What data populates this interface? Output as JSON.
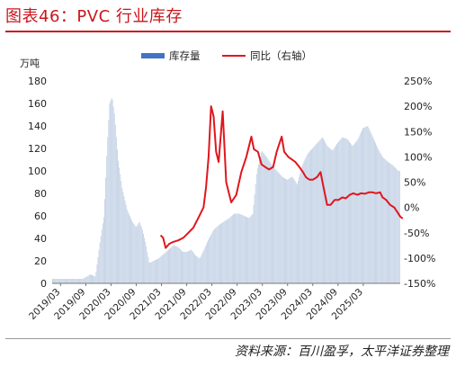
{
  "title": "图表46：PVC 行业库存",
  "source": "资料来源：百川盈孚，太平洋证券整理",
  "chart_data": {
    "type": "bar+line",
    "y_left_unit": "万吨",
    "y_left_ticks": [
      0,
      20,
      40,
      60,
      80,
      100,
      120,
      140,
      160,
      180
    ],
    "y_right_ticks": [
      "250%",
      "200%",
      "150%",
      "100%",
      "50%",
      "0%",
      "-50%",
      "-100%",
      "-150%"
    ],
    "ylim_left": [
      0,
      180
    ],
    "ylim_right_pct": [
      -150,
      250
    ],
    "x_ticks": [
      "2019/03",
      "2019/09",
      "2020/03",
      "2020/09",
      "2021/03",
      "2021/09",
      "2022/03",
      "2022/09",
      "2023/03",
      "2023/09",
      "2024/03",
      "2024/09",
      "2025/03"
    ],
    "x_range": [
      2019.0,
      2025.9
    ],
    "legend": [
      {
        "name": "库存量",
        "color": "#4472c4"
      },
      {
        "name": "同比（右轴）",
        "color": "#e0161d"
      }
    ],
    "legend_position": "top-center",
    "series": [
      {
        "name": "库存量",
        "axis": "left",
        "style": "area-bars",
        "color": "#c5d3e6",
        "points": [
          [
            2019.0,
            4
          ],
          [
            2019.3,
            4
          ],
          [
            2019.6,
            4
          ],
          [
            2019.75,
            8
          ],
          [
            2019.85,
            6
          ],
          [
            2019.95,
            40
          ],
          [
            2020.02,
            60
          ],
          [
            2020.08,
            120
          ],
          [
            2020.13,
            160
          ],
          [
            2020.18,
            166
          ],
          [
            2020.23,
            150
          ],
          [
            2020.3,
            110
          ],
          [
            2020.38,
            85
          ],
          [
            2020.48,
            65
          ],
          [
            2020.58,
            55
          ],
          [
            2020.66,
            50
          ],
          [
            2020.72,
            55
          ],
          [
            2020.78,
            48
          ],
          [
            2020.85,
            35
          ],
          [
            2020.92,
            18
          ],
          [
            2021.0,
            20
          ],
          [
            2021.1,
            22
          ],
          [
            2021.2,
            26
          ],
          [
            2021.3,
            30
          ],
          [
            2021.4,
            34
          ],
          [
            2021.5,
            32
          ],
          [
            2021.58,
            28
          ],
          [
            2021.66,
            28
          ],
          [
            2021.75,
            30
          ],
          [
            2021.83,
            25
          ],
          [
            2021.92,
            22
          ],
          [
            2022.0,
            30
          ],
          [
            2022.1,
            40
          ],
          [
            2022.2,
            48
          ],
          [
            2022.3,
            52
          ],
          [
            2022.4,
            55
          ],
          [
            2022.5,
            58
          ],
          [
            2022.6,
            62
          ],
          [
            2022.7,
            62
          ],
          [
            2022.8,
            60
          ],
          [
            2022.9,
            58
          ],
          [
            2022.97,
            62
          ],
          [
            2023.05,
            100
          ],
          [
            2023.15,
            118
          ],
          [
            2023.25,
            112
          ],
          [
            2023.35,
            105
          ],
          [
            2023.45,
            100
          ],
          [
            2023.55,
            95
          ],
          [
            2023.65,
            92
          ],
          [
            2023.75,
            95
          ],
          [
            2023.85,
            88
          ],
          [
            2023.95,
            105
          ],
          [
            2024.05,
            115
          ],
          [
            2024.15,
            120
          ],
          [
            2024.25,
            125
          ],
          [
            2024.35,
            130
          ],
          [
            2024.45,
            122
          ],
          [
            2024.55,
            118
          ],
          [
            2024.65,
            125
          ],
          [
            2024.75,
            130
          ],
          [
            2024.85,
            128
          ],
          [
            2024.95,
            122
          ],
          [
            2025.05,
            128
          ],
          [
            2025.15,
            138
          ],
          [
            2025.25,
            140
          ],
          [
            2025.35,
            130
          ],
          [
            2025.45,
            120
          ],
          [
            2025.55,
            112
          ],
          [
            2025.65,
            108
          ],
          [
            2025.75,
            105
          ],
          [
            2025.85,
            100
          ]
        ]
      },
      {
        "name": "同比（右轴）",
        "axis": "right",
        "style": "line",
        "color": "#e0161d",
        "points_pct": [
          [
            2021.15,
            -55
          ],
          [
            2021.2,
            -60
          ],
          [
            2021.25,
            -80
          ],
          [
            2021.32,
            -72
          ],
          [
            2021.4,
            -68
          ],
          [
            2021.5,
            -65
          ],
          [
            2021.6,
            -60
          ],
          [
            2021.7,
            -50
          ],
          [
            2021.8,
            -40
          ],
          [
            2021.9,
            -20
          ],
          [
            2022.0,
            0
          ],
          [
            2022.05,
            40
          ],
          [
            2022.1,
            100
          ],
          [
            2022.15,
            200
          ],
          [
            2022.2,
            180
          ],
          [
            2022.25,
            110
          ],
          [
            2022.3,
            90
          ],
          [
            2022.38,
            190
          ],
          [
            2022.45,
            50
          ],
          [
            2022.55,
            10
          ],
          [
            2022.65,
            25
          ],
          [
            2022.75,
            70
          ],
          [
            2022.85,
            100
          ],
          [
            2022.95,
            140
          ],
          [
            2023.0,
            115
          ],
          [
            2023.08,
            110
          ],
          [
            2023.15,
            85
          ],
          [
            2023.22,
            80
          ],
          [
            2023.3,
            75
          ],
          [
            2023.38,
            80
          ],
          [
            2023.45,
            110
          ],
          [
            2023.5,
            125
          ],
          [
            2023.55,
            140
          ],
          [
            2023.6,
            110
          ],
          [
            2023.68,
            100
          ],
          [
            2023.75,
            95
          ],
          [
            2023.82,
            90
          ],
          [
            2023.9,
            80
          ],
          [
            2023.97,
            70
          ],
          [
            2024.03,
            60
          ],
          [
            2024.1,
            55
          ],
          [
            2024.17,
            55
          ],
          [
            2024.25,
            60
          ],
          [
            2024.32,
            70
          ],
          [
            2024.38,
            40
          ],
          [
            2024.45,
            5
          ],
          [
            2024.52,
            5
          ],
          [
            2024.6,
            15
          ],
          [
            2024.68,
            15
          ],
          [
            2024.75,
            20
          ],
          [
            2024.82,
            18
          ],
          [
            2024.9,
            25
          ],
          [
            2024.97,
            28
          ],
          [
            2025.05,
            25
          ],
          [
            2025.12,
            28
          ],
          [
            2025.2,
            27
          ],
          [
            2025.28,
            30
          ],
          [
            2025.35,
            30
          ],
          [
            2025.42,
            28
          ],
          [
            2025.5,
            30
          ],
          [
            2025.55,
            20
          ],
          [
            2025.62,
            15
          ],
          [
            2025.7,
            5
          ],
          [
            2025.78,
            0
          ],
          [
            2025.85,
            -10
          ],
          [
            2025.9,
            -18
          ],
          [
            2025.95,
            -22
          ]
        ]
      }
    ]
  }
}
